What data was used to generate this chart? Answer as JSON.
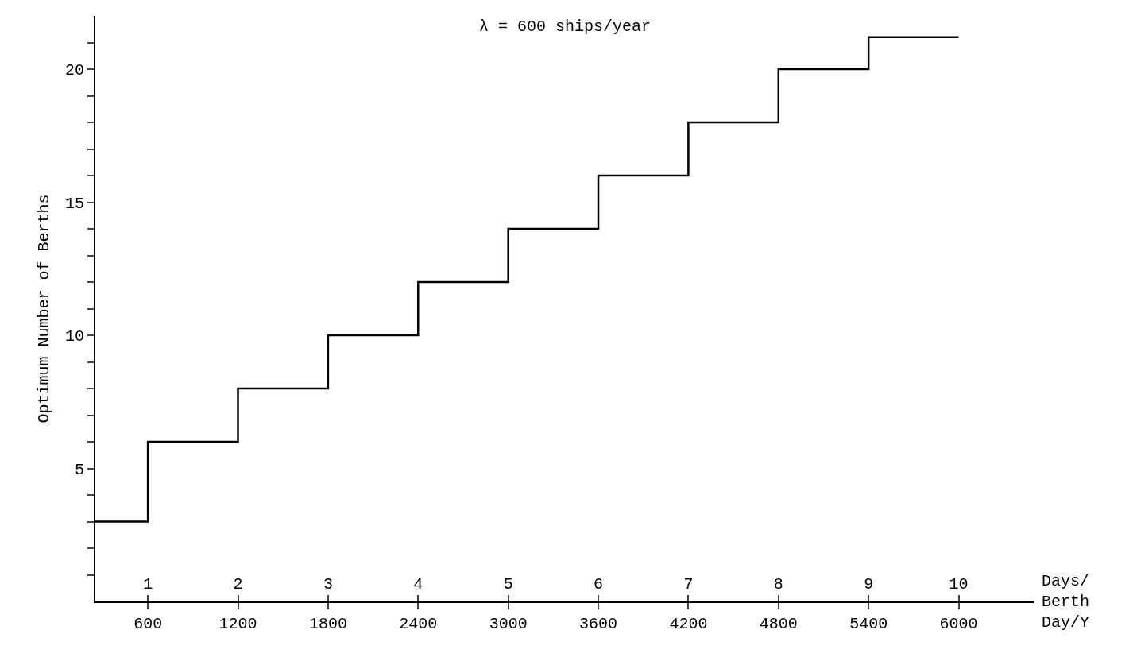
{
  "chart_data": {
    "type": "step",
    "ylabel": "Optimum Number of Berths",
    "xlabel": "Days/ Berth Day/Y",
    "annotations": [
      "λ = 600 ships/year"
    ],
    "x": [
      250,
      600,
      1200,
      1800,
      2400,
      3000,
      3600,
      4200,
      4800,
      5400,
      6000
    ],
    "series": [
      {
        "color": "#000000",
        "values": [
          3,
          6,
          8,
          10,
          12,
          14,
          16,
          18,
          20,
          21.2,
          21.2
        ]
      }
    ],
    "xlim": [
      250,
      6500
    ],
    "xticks": [
      600,
      1200,
      1800,
      2400,
      3000,
      3600,
      4200,
      4800,
      5400,
      6000
    ],
    "x2lim": [
      0.4167,
      10.8333
    ],
    "x2ticks": [
      1,
      2,
      3,
      4,
      5,
      6,
      7,
      8,
      9,
      10
    ],
    "ylim": [
      0,
      22
    ],
    "yticks": [
      {
        "value": 1,
        "label": null
      },
      {
        "value": 2,
        "label": null
      },
      {
        "value": 3,
        "label": null
      },
      {
        "value": 4,
        "label": null
      },
      5,
      {
        "value": 6,
        "label": null
      },
      {
        "value": 7,
        "label": null
      },
      {
        "value": 8,
        "label": null
      },
      {
        "value": 9,
        "label": null
      },
      10,
      {
        "value": 11,
        "label": null
      },
      {
        "value": 12,
        "label": null
      },
      {
        "value": 13,
        "label": null
      },
      {
        "value": 14,
        "label": null
      },
      15,
      {
        "value": 16,
        "label": null
      },
      {
        "value": 17,
        "label": null
      },
      {
        "value": 18,
        "label": null
      },
      {
        "value": 19,
        "label": null
      },
      20,
      {
        "value": 21,
        "label": null
      }
    ],
    "marker": "none",
    "line_style": "solid"
  }
}
